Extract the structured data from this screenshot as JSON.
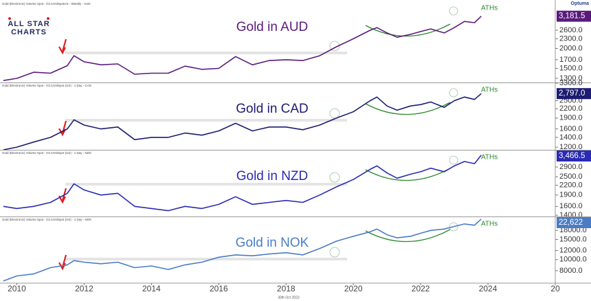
{
  "logo": [
    "ALL STAR",
    "CHARTS"
  ],
  "brand": "Optuma",
  "footer": "30th Oct 2023",
  "chart_data": [
    {
      "type": "line",
      "header": "Gold (Electronic) Volume Spot - GC1!VolSpotUS - Weekly - AUD",
      "title": "Gold in AUD",
      "annotation": "ATHs",
      "color": "#5a1a7c",
      "log_scale": true,
      "x": [
        2009.6,
        2010.0,
        2010.5,
        2011.0,
        2011.5,
        2011.7,
        2012.0,
        2012.5,
        2013.0,
        2013.5,
        2014.0,
        2014.5,
        2015.0,
        2015.5,
        2016.0,
        2016.5,
        2017.0,
        2017.5,
        2018.0,
        2018.5,
        2019.0,
        2019.5,
        2020.0,
        2020.5,
        2020.7,
        2021.0,
        2021.3,
        2021.7,
        2022.0,
        2022.3,
        2022.7,
        2023.0,
        2023.3,
        2023.6,
        2023.8
      ],
      "values": [
        1260,
        1300,
        1420,
        1400,
        1560,
        1800,
        1650,
        1580,
        1600,
        1380,
        1400,
        1400,
        1550,
        1480,
        1500,
        1780,
        1580,
        1680,
        1700,
        1680,
        1800,
        2050,
        2300,
        2600,
        2700,
        2500,
        2350,
        2450,
        2550,
        2650,
        2500,
        2700,
        2950,
        2900,
        3181.5
      ],
      "last_value_label": "3,181.5",
      "xlim": [
        2009.5,
        2026
      ],
      "ylim": [
        1225,
        3940
      ],
      "yticks": [
        {
          "value": 1300,
          "label": "1300.0"
        },
        {
          "value": 1500,
          "label": "1500.0"
        },
        {
          "value": 1700,
          "label": "1700.0"
        },
        {
          "value": 2000,
          "label": "2000.0"
        },
        {
          "value": 2300,
          "label": "2300.0"
        },
        {
          "value": 2600,
          "label": "2600.0"
        }
      ]
    },
    {
      "type": "line",
      "header": "Gold (Electronic) Volume Spot - GC1!VolSpot (US) - 1 Day - CAD",
      "title": "Gold in CAD",
      "annotation": "ATHs",
      "color": "#1c1c72",
      "log_scale": true,
      "x": [
        2009.6,
        2010.0,
        2010.5,
        2011.0,
        2011.5,
        2011.7,
        2012.0,
        2012.5,
        2013.0,
        2013.5,
        2014.0,
        2014.5,
        2015.0,
        2015.5,
        2016.0,
        2016.5,
        2017.0,
        2017.5,
        2018.0,
        2018.5,
        2019.0,
        2019.5,
        2020.0,
        2020.5,
        2020.7,
        2021.0,
        2021.3,
        2021.7,
        2022.0,
        2022.3,
        2022.7,
        2023.0,
        2023.3,
        2023.6,
        2023.8
      ],
      "values": [
        1150,
        1200,
        1300,
        1400,
        1600,
        1850,
        1700,
        1600,
        1650,
        1350,
        1400,
        1400,
        1500,
        1450,
        1550,
        1750,
        1550,
        1650,
        1650,
        1580,
        1700,
        1900,
        2100,
        2500,
        2650,
        2300,
        2150,
        2300,
        2350,
        2450,
        2250,
        2500,
        2650,
        2550,
        2797
      ],
      "last_value_label": "2,797.0",
      "xlim": [
        2009.5,
        2026
      ],
      "ylim": [
        1150,
        3300
      ],
      "yticks": [
        {
          "value": 1200,
          "label": "1200.0"
        },
        {
          "value": 1400,
          "label": "1400.0"
        },
        {
          "value": 1600,
          "label": "1600.0"
        },
        {
          "value": 1900,
          "label": "1900.0"
        },
        {
          "value": 2200,
          "label": "2200.0"
        },
        {
          "value": 2500,
          "label": "2500.0"
        },
        {
          "value": 3300,
          "label": "3300.0"
        }
      ]
    },
    {
      "type": "line",
      "header": "Gold (Electronic) Volume Spot - GC1!VolSpot (US) - 1 Day - NZD",
      "title": "Gold in NZD",
      "annotation": "ATHs",
      "color": "#2a2ab4",
      "log_scale": true,
      "x": [
        2009.6,
        2010.0,
        2010.5,
        2011.0,
        2011.5,
        2011.7,
        2012.0,
        2012.5,
        2013.0,
        2013.5,
        2014.0,
        2014.5,
        2015.0,
        2015.5,
        2016.0,
        2016.5,
        2017.0,
        2017.5,
        2018.0,
        2018.5,
        2019.0,
        2019.5,
        2020.0,
        2020.5,
        2020.7,
        2021.0,
        2021.3,
        2021.7,
        2022.0,
        2022.3,
        2022.7,
        2023.0,
        2023.3,
        2023.6,
        2023.8
      ],
      "values": [
        1600,
        1550,
        1600,
        1700,
        1950,
        2250,
        2050,
        1900,
        1950,
        1600,
        1550,
        1500,
        1600,
        1550,
        1650,
        1850,
        1650,
        1700,
        1750,
        1700,
        1900,
        2150,
        2400,
        2800,
        2950,
        2650,
        2450,
        2600,
        2700,
        2850,
        2700,
        2950,
        3150,
        3050,
        3466.5
      ],
      "last_value_label": "3,466.5",
      "xlim": [
        2009.5,
        2026
      ],
      "ylim": [
        1360,
        3720
      ],
      "yticks": [
        {
          "value": 1400,
          "label": "1400.0"
        },
        {
          "value": 1600,
          "label": "1600.0"
        },
        {
          "value": 1900,
          "label": "1900.0"
        },
        {
          "value": 2200,
          "label": "2200.0"
        },
        {
          "value": 2500,
          "label": "2500.0"
        },
        {
          "value": 2900,
          "label": "2900.0"
        }
      ]
    },
    {
      "type": "line",
      "header": "Gold (Electronic) Volume Spot - GC1!VolSpot (US) - 1 Day - NOK",
      "title": "Gold in NOK",
      "annotation": "ATHs",
      "color": "#4a7cc6",
      "log_scale": true,
      "x": [
        2009.6,
        2010.0,
        2010.5,
        2011.0,
        2011.5,
        2011.7,
        2012.0,
        2012.5,
        2013.0,
        2013.5,
        2014.0,
        2014.5,
        2015.0,
        2015.5,
        2016.0,
        2016.5,
        2017.0,
        2017.5,
        2018.0,
        2018.5,
        2019.0,
        2019.5,
        2020.0,
        2020.5,
        2020.7,
        2021.0,
        2021.3,
        2021.7,
        2022.0,
        2022.3,
        2022.7,
        2023.0,
        2023.3,
        2023.6,
        2023.8
      ],
      "values": [
        6500,
        7200,
        7500,
        8500,
        9000,
        9800,
        9500,
        9200,
        9500,
        8500,
        8800,
        8200,
        9000,
        9500,
        10500,
        11000,
        10800,
        11200,
        11500,
        11000,
        12500,
        14500,
        16000,
        17500,
        18500,
        16500,
        15500,
        16000,
        17000,
        18000,
        18500,
        19500,
        20500,
        20000,
        22622
      ],
      "last_value_label": "22,622",
      "xlim": [
        2009.5,
        2026
      ],
      "ylim": [
        6230,
        23500
      ],
      "yticks": [
        {
          "value": 8000,
          "label": "8000.0"
        },
        {
          "value": 10000,
          "label": "10000.0"
        },
        {
          "value": 12000,
          "label": "12000.0"
        },
        {
          "value": 15000,
          "label": "15000.0"
        },
        {
          "value": 18000,
          "label": "18000.0"
        }
      ],
      "xticks": [
        2010,
        2012,
        2014,
        2016,
        2018,
        2020,
        2022,
        2024,
        {
          "value": 2026,
          "label": "20"
        }
      ]
    }
  ]
}
